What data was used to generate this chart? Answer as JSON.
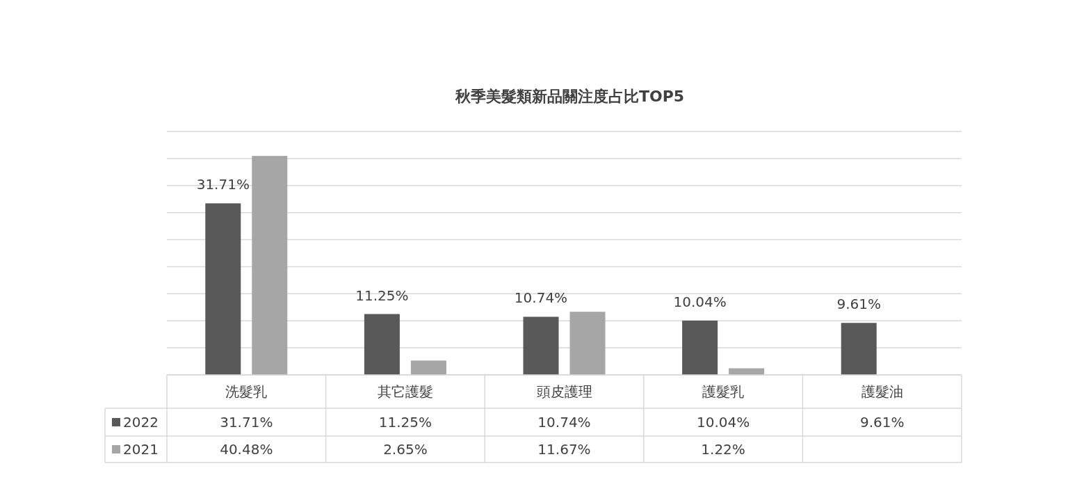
{
  "chart_data": {
    "type": "bar",
    "title": "秋季美髮類新品關注度占比TOP5",
    "categories": [
      "洗髮乳",
      "其它護髮",
      "頭皮護理",
      "護髮乳",
      "護髮油"
    ],
    "series": [
      {
        "name": "2022",
        "color": "#595959",
        "data_labels": true,
        "values": [
          31.71,
          11.25,
          10.74,
          10.04,
          9.61
        ],
        "value_labels": [
          "31.71%",
          "11.25%",
          "10.74%",
          "10.04%",
          "9.61%"
        ]
      },
      {
        "name": "2021",
        "color": "#a6a6a6",
        "values": [
          40.48,
          2.65,
          11.67,
          1.22,
          null
        ],
        "value_labels": [
          "40.48%",
          "2.65%",
          "11.67%",
          "1.22%",
          null
        ]
      }
    ],
    "ylim": [
      0,
      45
    ],
    "yticks": [
      {
        "value": 0,
        "label": null
      },
      {
        "value": 5,
        "label": null
      },
      {
        "value": 10,
        "label": null
      },
      {
        "value": 15,
        "label": null
      },
      {
        "value": 20,
        "label": null
      },
      {
        "value": 25,
        "label": null
      },
      {
        "value": 30,
        "label": null
      },
      {
        "value": 35,
        "label": null
      },
      {
        "value": 40,
        "label": null
      },
      {
        "value": 45,
        "label": null
      }
    ],
    "grid": "y",
    "legend": "bottom",
    "tick_labels": "x"
  }
}
